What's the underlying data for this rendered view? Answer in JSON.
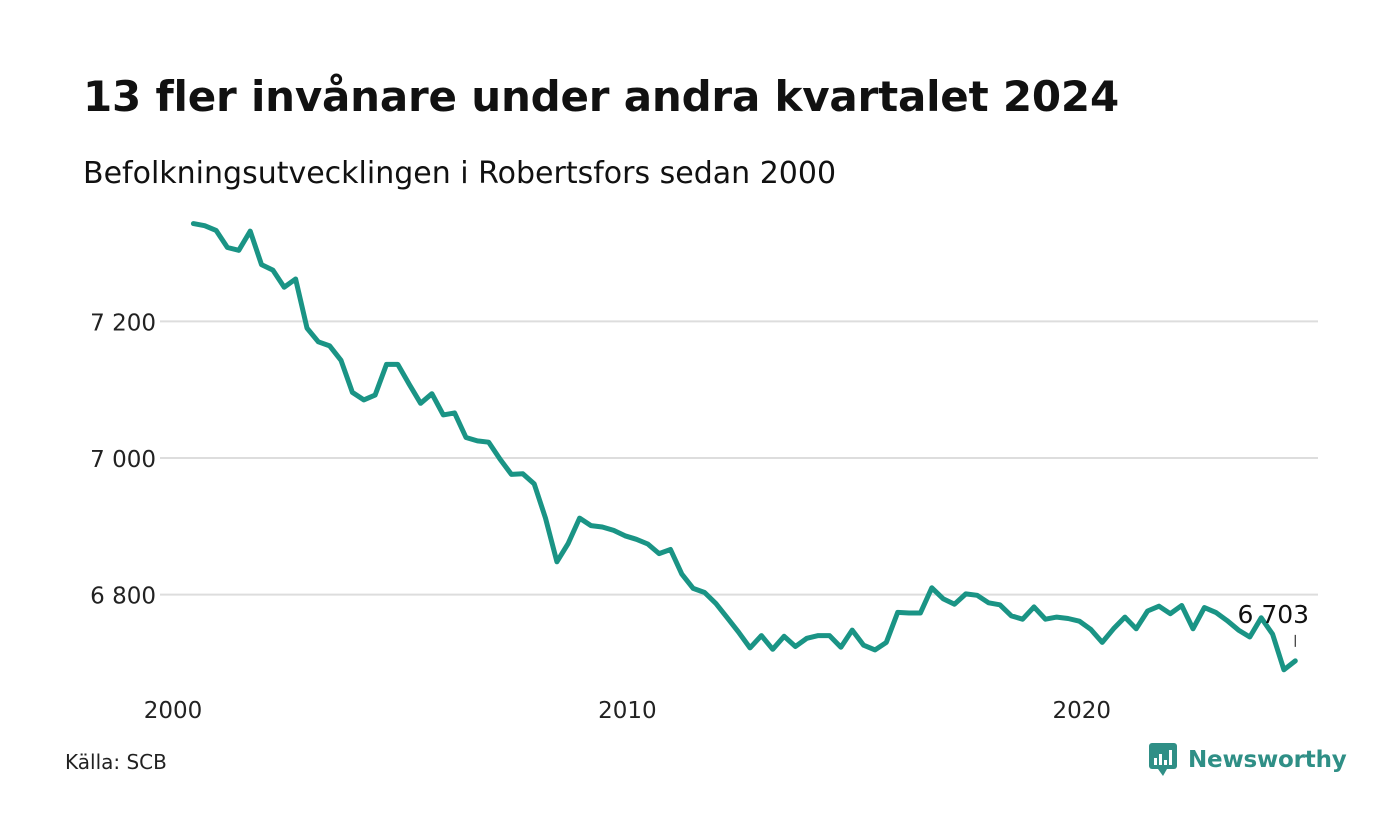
{
  "header": {
    "title": "13 fler invånare under andra kvartalet 2024",
    "subtitle": "Befolkningsutvecklingen i Robertsfors sedan 2000"
  },
  "footer": {
    "source": "Källa: SCB",
    "brand": "Newsworthy",
    "brand_icon": "chart-bubble-icon"
  },
  "colors": {
    "line": "#1a9485",
    "grid": "#dddddd",
    "brand": "#2f8f86"
  },
  "chart_data": {
    "type": "line",
    "title": "13 fler invånare under andra kvartalet 2024",
    "subtitle": "Befolkningsutvecklingen i Robertsfors sedan 2000",
    "xlabel": "",
    "ylabel": "",
    "x_ticks": [
      2000,
      2010,
      2020
    ],
    "y_ticks": [
      {
        "value": 6800,
        "label": "6 800"
      },
      {
        "value": 7000,
        "label": "7 000"
      },
      {
        "value": 7200,
        "label": "7 200"
      }
    ],
    "xlim": [
      2000,
      2025
    ],
    "ylim": [
      6675,
      7360
    ],
    "grid": true,
    "last_value_label": "6 703",
    "series": [
      {
        "values": [
          {
            "x": 2000.25,
            "y": 7343
          },
          {
            "x": 2000.5,
            "y": 7340
          },
          {
            "x": 2000.75,
            "y": 7333
          },
          {
            "x": 2001.0,
            "y": 7308
          },
          {
            "x": 2001.25,
            "y": 7304
          },
          {
            "x": 2001.5,
            "y": 7332
          },
          {
            "x": 2001.75,
            "y": 7283
          },
          {
            "x": 2002.0,
            "y": 7275
          },
          {
            "x": 2002.25,
            "y": 7250
          },
          {
            "x": 2002.5,
            "y": 7262
          },
          {
            "x": 2002.75,
            "y": 7190
          },
          {
            "x": 2003.0,
            "y": 7170
          },
          {
            "x": 2003.25,
            "y": 7164
          },
          {
            "x": 2003.5,
            "y": 7143
          },
          {
            "x": 2003.75,
            "y": 7096
          },
          {
            "x": 2004.0,
            "y": 7085
          },
          {
            "x": 2004.25,
            "y": 7092
          },
          {
            "x": 2004.5,
            "y": 7137
          },
          {
            "x": 2004.75,
            "y": 7137
          },
          {
            "x": 2005.0,
            "y": 7108
          },
          {
            "x": 2005.25,
            "y": 7080
          },
          {
            "x": 2005.5,
            "y": 7094
          },
          {
            "x": 2005.75,
            "y": 7063
          },
          {
            "x": 2006.0,
            "y": 7066
          },
          {
            "x": 2006.25,
            "y": 7030
          },
          {
            "x": 2006.5,
            "y": 7025
          },
          {
            "x": 2006.75,
            "y": 7023
          },
          {
            "x": 2007.0,
            "y": 6998
          },
          {
            "x": 2007.25,
            "y": 6976
          },
          {
            "x": 2007.5,
            "y": 6977
          },
          {
            "x": 2007.75,
            "y": 6962
          },
          {
            "x": 2008.0,
            "y": 6912
          },
          {
            "x": 2008.25,
            "y": 6848
          },
          {
            "x": 2008.5,
            "y": 6875
          },
          {
            "x": 2008.75,
            "y": 6912
          },
          {
            "x": 2009.0,
            "y": 6901
          },
          {
            "x": 2009.25,
            "y": 6899
          },
          {
            "x": 2009.5,
            "y": 6894
          },
          {
            "x": 2009.75,
            "y": 6886
          },
          {
            "x": 2010.0,
            "y": 6881
          },
          {
            "x": 2010.25,
            "y": 6874
          },
          {
            "x": 2010.5,
            "y": 6860
          },
          {
            "x": 2010.75,
            "y": 6866
          },
          {
            "x": 2011.0,
            "y": 6830
          },
          {
            "x": 2011.25,
            "y": 6809
          },
          {
            "x": 2011.5,
            "y": 6803
          },
          {
            "x": 2011.75,
            "y": 6787
          },
          {
            "x": 2012.0,
            "y": 6766
          },
          {
            "x": 2012.25,
            "y": 6745
          },
          {
            "x": 2012.5,
            "y": 6722
          },
          {
            "x": 2012.75,
            "y": 6740
          },
          {
            "x": 2013.0,
            "y": 6720
          },
          {
            "x": 2013.25,
            "y": 6739
          },
          {
            "x": 2013.5,
            "y": 6724
          },
          {
            "x": 2013.75,
            "y": 6736
          },
          {
            "x": 2014.0,
            "y": 6740
          },
          {
            "x": 2014.25,
            "y": 6740
          },
          {
            "x": 2014.5,
            "y": 6723
          },
          {
            "x": 2014.75,
            "y": 6748
          },
          {
            "x": 2015.0,
            "y": 6726
          },
          {
            "x": 2015.25,
            "y": 6719
          },
          {
            "x": 2015.5,
            "y": 6730
          },
          {
            "x": 2015.75,
            "y": 6774
          },
          {
            "x": 2016.0,
            "y": 6773
          },
          {
            "x": 2016.25,
            "y": 6773
          },
          {
            "x": 2016.5,
            "y": 6810
          },
          {
            "x": 2016.75,
            "y": 6794
          },
          {
            "x": 2017.0,
            "y": 6786
          },
          {
            "x": 2017.25,
            "y": 6801
          },
          {
            "x": 2017.5,
            "y": 6799
          },
          {
            "x": 2017.75,
            "y": 6788
          },
          {
            "x": 2018.0,
            "y": 6785
          },
          {
            "x": 2018.25,
            "y": 6769
          },
          {
            "x": 2018.5,
            "y": 6764
          },
          {
            "x": 2018.75,
            "y": 6782
          },
          {
            "x": 2019.0,
            "y": 6764
          },
          {
            "x": 2019.25,
            "y": 6767
          },
          {
            "x": 2019.5,
            "y": 6765
          },
          {
            "x": 2019.75,
            "y": 6761
          },
          {
            "x": 2020.0,
            "y": 6749
          },
          {
            "x": 2020.25,
            "y": 6730
          },
          {
            "x": 2020.5,
            "y": 6750
          },
          {
            "x": 2020.75,
            "y": 6767
          },
          {
            "x": 2021.0,
            "y": 6750
          },
          {
            "x": 2021.25,
            "y": 6776
          },
          {
            "x": 2021.5,
            "y": 6783
          },
          {
            "x": 2021.75,
            "y": 6772
          },
          {
            "x": 2022.0,
            "y": 6784
          },
          {
            "x": 2022.25,
            "y": 6750
          },
          {
            "x": 2022.5,
            "y": 6781
          },
          {
            "x": 2022.75,
            "y": 6774
          },
          {
            "x": 2023.0,
            "y": 6762
          },
          {
            "x": 2023.25,
            "y": 6748
          },
          {
            "x": 2023.5,
            "y": 6738
          },
          {
            "x": 2023.75,
            "y": 6766
          },
          {
            "x": 2024.0,
            "y": 6742
          },
          {
            "x": 2024.25,
            "y": 6690
          },
          {
            "x": 2024.5,
            "y": 6703
          }
        ]
      }
    ]
  }
}
